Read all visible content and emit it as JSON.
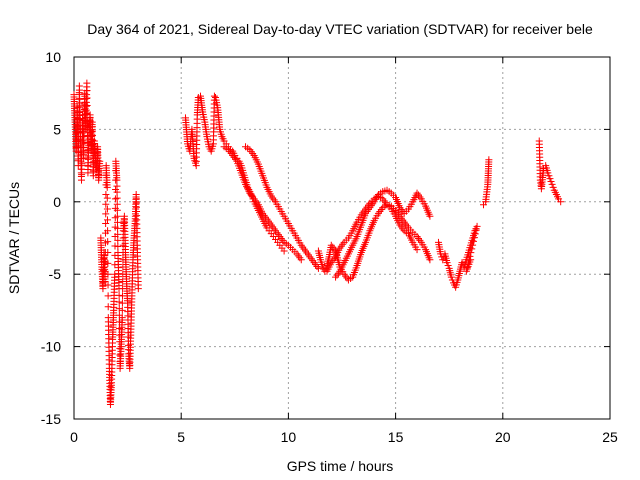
{
  "chart_data": {
    "type": "scatter",
    "title": "Day 364 of 2021, Sidereal Day-to-day VTEC variation (SDTVAR) for receiver bele",
    "xlabel": "GPS time / hours",
    "ylabel": "SDTVAR / TECUs",
    "xlim": [
      0,
      25
    ],
    "ylim": [
      -15,
      10
    ],
    "xticks": [
      0,
      5,
      10,
      15,
      20,
      25
    ],
    "yticks": [
      -15,
      -10,
      -5,
      0,
      5,
      10
    ],
    "xtick_labels": [
      "0",
      "5",
      "10",
      "15",
      "20",
      "25"
    ],
    "ytick_labels": [
      "-15",
      "-10",
      "-5",
      "0",
      "5",
      "10"
    ],
    "grid": true,
    "marker": "+",
    "color": "#ff0000",
    "series": [
      {
        "name": "SDTVAR",
        "segments": [
          [
            [
              0.0,
              7.4
            ],
            [
              0.05,
              5.5
            ],
            [
              0.1,
              3.5
            ],
            [
              0.15,
              6.5
            ],
            [
              0.2,
              2.5
            ],
            [
              0.25,
              8.0
            ],
            [
              0.3,
              4.5
            ],
            [
              0.35,
              1.5
            ],
            [
              0.4,
              6.0
            ],
            [
              0.45,
              3.0
            ],
            [
              0.5,
              7.5
            ],
            [
              0.55,
              5.0
            ],
            [
              0.6,
              8.2
            ],
            [
              0.65,
              2.0
            ],
            [
              0.7,
              4.8
            ],
            [
              0.75,
              6.0
            ],
            [
              0.8,
              3.5
            ],
            [
              0.85,
              5.5
            ],
            [
              0.9,
              1.8
            ],
            [
              0.95,
              4.2
            ],
            [
              1.0,
              3.0
            ],
            [
              1.05,
              2.2
            ],
            [
              1.1,
              3.8
            ],
            [
              1.15,
              1.5
            ],
            [
              1.2,
              2.8
            ]
          ],
          [
            [
              1.25,
              -2.5
            ],
            [
              1.3,
              -4.5
            ],
            [
              1.35,
              -6.0
            ],
            [
              1.4,
              -3.5
            ],
            [
              1.45,
              -5.5
            ],
            [
              1.5,
              2.5
            ],
            [
              1.55,
              1.0
            ],
            [
              1.6,
              -8.0
            ],
            [
              1.65,
              -11.5
            ],
            [
              1.7,
              -14.0
            ],
            [
              1.75,
              -12.5
            ],
            [
              1.8,
              -9.5
            ],
            [
              1.85,
              -7.5
            ],
            [
              1.9,
              -5.0
            ],
            [
              1.95,
              2.8
            ],
            [
              2.0,
              1.5
            ],
            [
              2.05,
              -3.5
            ],
            [
              2.1,
              -6.0
            ],
            [
              2.15,
              -11.5
            ],
            [
              2.2,
              -10.0
            ],
            [
              2.25,
              -8.0
            ],
            [
              2.3,
              -2.0
            ],
            [
              2.35,
              -1.0
            ],
            [
              2.4,
              -3.5
            ],
            [
              2.45,
              -5.5
            ],
            [
              2.5,
              -7.0
            ],
            [
              2.55,
              -10.5
            ],
            [
              2.6,
              -11.5
            ],
            [
              2.65,
              -9.0
            ],
            [
              2.7,
              -6.5
            ],
            [
              2.75,
              -4.0
            ],
            [
              2.8,
              -2.5
            ],
            [
              2.85,
              -1.5
            ],
            [
              2.9,
              0.5
            ],
            [
              2.95,
              -3.0
            ],
            [
              3.0,
              -6.0
            ]
          ],
          [
            [
              5.2,
              5.8
            ],
            [
              5.3,
              4.0
            ],
            [
              5.4,
              3.5
            ],
            [
              5.5,
              5.0
            ],
            [
              5.6,
              3.0
            ],
            [
              5.7,
              2.5
            ],
            [
              5.75,
              6.0
            ],
            [
              5.8,
              7.2
            ],
            [
              5.9,
              7.3
            ],
            [
              6.0,
              6.2
            ],
            [
              6.1,
              5.5
            ],
            [
              6.2,
              4.5
            ],
            [
              6.3,
              3.8
            ],
            [
              6.4,
              3.5
            ],
            [
              6.5,
              4.0
            ],
            [
              6.55,
              7.3
            ],
            [
              6.6,
              7.2
            ],
            [
              6.7,
              6.5
            ],
            [
              6.8,
              5.0
            ],
            [
              6.9,
              4.5
            ],
            [
              7.0,
              4.2
            ],
            [
              7.1,
              4.0
            ],
            [
              7.2,
              3.8
            ],
            [
              7.3,
              3.6
            ],
            [
              7.4,
              3.5
            ],
            [
              7.5,
              3.2
            ],
            [
              7.6,
              3.0
            ],
            [
              7.7,
              2.8
            ],
            [
              7.8,
              2.5
            ],
            [
              7.9,
              2.0
            ],
            [
              8.0,
              1.5
            ],
            [
              8.1,
              1.0
            ],
            [
              8.2,
              0.7
            ],
            [
              8.3,
              0.4
            ],
            [
              8.4,
              0.0
            ],
            [
              8.5,
              -0.3
            ],
            [
              8.6,
              -0.6
            ],
            [
              8.7,
              -0.9
            ],
            [
              8.8,
              -1.2
            ],
            [
              8.9,
              -1.5
            ],
            [
              9.0,
              -1.8
            ],
            [
              9.1,
              -2.0
            ],
            [
              9.2,
              -2.2
            ],
            [
              9.3,
              -2.4
            ],
            [
              9.4,
              -2.6
            ],
            [
              9.5,
              -2.8
            ],
            [
              9.6,
              -3.0
            ],
            [
              9.7,
              -3.2
            ],
            [
              9.8,
              -3.4
            ]
          ],
          [
            [
              7.0,
              3.8
            ],
            [
              7.2,
              3.6
            ],
            [
              7.4,
              3.2
            ],
            [
              7.6,
              2.8
            ],
            [
              7.8,
              2.0
            ],
            [
              8.0,
              1.2
            ],
            [
              8.2,
              0.6
            ],
            [
              8.4,
              0.2
            ],
            [
              8.6,
              -0.2
            ],
            [
              8.8,
              -0.8
            ],
            [
              9.0,
              -1.2
            ],
            [
              9.2,
              -1.6
            ],
            [
              9.4,
              -2.0
            ],
            [
              9.6,
              -2.4
            ],
            [
              9.8,
              -2.8
            ],
            [
              10.0,
              -3.0
            ],
            [
              10.2,
              -3.3
            ],
            [
              10.4,
              -3.6
            ],
            [
              10.6,
              -4.0
            ]
          ],
          [
            [
              8.0,
              3.8
            ],
            [
              8.2,
              3.6
            ],
            [
              8.4,
              3.2
            ],
            [
              8.6,
              2.6
            ],
            [
              8.8,
              1.8
            ],
            [
              9.0,
              1.0
            ],
            [
              9.2,
              0.4
            ],
            [
              9.4,
              0.0
            ],
            [
              9.6,
              -0.5
            ],
            [
              9.8,
              -1.0
            ],
            [
              10.0,
              -1.5
            ],
            [
              10.2,
              -2.0
            ],
            [
              10.4,
              -2.5
            ],
            [
              10.6,
              -3.0
            ],
            [
              10.8,
              -3.4
            ],
            [
              11.0,
              -3.8
            ],
            [
              11.2,
              -4.2
            ],
            [
              11.4,
              -4.6
            ]
          ],
          [
            [
              11.4,
              -3.4
            ],
            [
              11.5,
              -4.0
            ],
            [
              11.6,
              -4.5
            ],
            [
              11.7,
              -4.8
            ],
            [
              11.8,
              -4.4
            ],
            [
              11.9,
              -3.8
            ],
            [
              12.0,
              -3.0
            ],
            [
              12.2,
              -3.4
            ],
            [
              12.4,
              -4.5
            ],
            [
              12.6,
              -5.0
            ],
            [
              12.8,
              -5.4
            ],
            [
              13.0,
              -5.2
            ],
            [
              13.2,
              -4.4
            ],
            [
              13.4,
              -3.5
            ],
            [
              13.6,
              -2.8
            ],
            [
              13.8,
              -2.0
            ],
            [
              14.0,
              -1.3
            ],
            [
              14.2,
              -0.8
            ],
            [
              14.4,
              -0.4
            ],
            [
              14.6,
              -0.2
            ],
            [
              14.8,
              -0.3
            ],
            [
              15.0,
              -0.6
            ],
            [
              15.2,
              -1.0
            ],
            [
              15.4,
              -1.4
            ],
            [
              15.6,
              -1.8
            ],
            [
              15.8,
              -2.1
            ],
            [
              16.0,
              -2.4
            ],
            [
              16.2,
              -2.8
            ],
            [
              16.4,
              -3.3
            ],
            [
              16.6,
              -4.0
            ]
          ],
          [
            [
              11.8,
              -4.8
            ],
            [
              12.0,
              -4.2
            ],
            [
              12.2,
              -3.8
            ],
            [
              12.4,
              -3.2
            ],
            [
              12.6,
              -2.8
            ],
            [
              12.8,
              -2.5
            ],
            [
              13.0,
              -2.0
            ],
            [
              13.2,
              -1.4
            ],
            [
              13.4,
              -0.9
            ],
            [
              13.6,
              -0.5
            ],
            [
              13.8,
              -0.1
            ],
            [
              14.0,
              0.2
            ],
            [
              14.2,
              0.4
            ],
            [
              14.4,
              0.2
            ],
            [
              14.6,
              -0.2
            ],
            [
              14.8,
              -0.5
            ],
            [
              15.0,
              -1.0
            ],
            [
              15.2,
              -1.6
            ],
            [
              15.4,
              -2.0
            ],
            [
              15.6,
              -2.2
            ],
            [
              15.8,
              -2.8
            ],
            [
              16.0,
              -3.3
            ]
          ],
          [
            [
              12.2,
              -5.2
            ],
            [
              12.4,
              -4.8
            ],
            [
              12.6,
              -4.2
            ],
            [
              12.8,
              -3.6
            ],
            [
              13.0,
              -3.0
            ],
            [
              13.2,
              -2.4
            ],
            [
              13.4,
              -1.6
            ],
            [
              13.6,
              -0.8
            ],
            [
              13.8,
              -0.4
            ],
            [
              14.0,
              0.0
            ],
            [
              14.2,
              0.5
            ],
            [
              14.4,
              0.7
            ],
            [
              14.6,
              0.8
            ],
            [
              14.8,
              0.6
            ],
            [
              15.0,
              0.3
            ],
            [
              15.2,
              -0.4
            ],
            [
              15.4,
              -0.8
            ],
            [
              15.6,
              -0.5
            ],
            [
              15.8,
              0.0
            ],
            [
              16.0,
              0.6
            ],
            [
              16.2,
              0.2
            ],
            [
              16.4,
              -0.3
            ],
            [
              16.6,
              -1.0
            ]
          ],
          [
            [
              17.0,
              -2.8
            ],
            [
              17.1,
              -3.6
            ],
            [
              17.2,
              -4.0
            ],
            [
              17.3,
              -3.6
            ],
            [
              17.4,
              -4.2
            ],
            [
              17.5,
              -4.6
            ],
            [
              17.6,
              -5.2
            ],
            [
              17.7,
              -5.6
            ],
            [
              17.8,
              -5.9
            ],
            [
              17.9,
              -5.4
            ],
            [
              18.0,
              -4.8
            ],
            [
              18.1,
              -4.2
            ],
            [
              18.2,
              -4.5
            ],
            [
              18.3,
              -4.0
            ],
            [
              18.4,
              -3.5
            ],
            [
              18.5,
              -3.0
            ],
            [
              18.6,
              -2.5
            ],
            [
              18.7,
              -2.0
            ],
            [
              18.8,
              -1.7
            ],
            [
              18.3,
              -4.8
            ],
            [
              18.5,
              -4.0
            ]
          ],
          [
            [
              19.1,
              -0.2
            ],
            [
              19.2,
              0.0
            ],
            [
              19.3,
              1.2
            ],
            [
              19.35,
              2.9
            ]
          ],
          [
            [
              21.7,
              4.2
            ],
            [
              21.75,
              1.5
            ],
            [
              21.8,
              0.9
            ],
            [
              21.9,
              2.3
            ],
            [
              22.0,
              2.5
            ],
            [
              22.1,
              2.0
            ],
            [
              22.2,
              1.6
            ],
            [
              22.3,
              1.2
            ],
            [
              22.4,
              0.8
            ],
            [
              22.5,
              0.5
            ],
            [
              22.6,
              0.2
            ],
            [
              22.7,
              0.0
            ]
          ]
        ]
      }
    ]
  }
}
